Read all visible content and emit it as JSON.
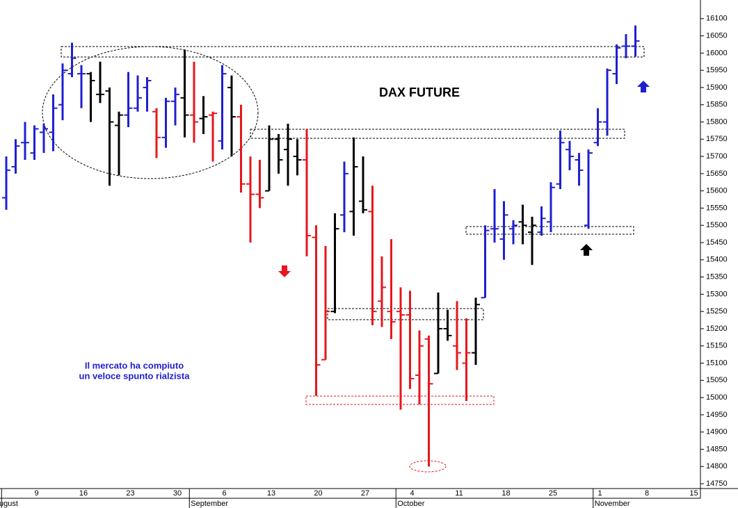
{
  "chart_data": {
    "type": "ohlc",
    "title": "DAX FUTURE",
    "annotation": [
      "Il mercato ha compiuto",
      "un veloce spunto rialzista"
    ],
    "categories": [
      null,
      null,
      null,
      "9",
      null,
      null,
      null,
      null,
      "16",
      null,
      null,
      null,
      null,
      "23",
      null,
      null,
      null,
      null,
      "30",
      null,
      null,
      null,
      null,
      "6",
      null,
      null,
      null,
      null,
      "13",
      null,
      null,
      null,
      null,
      "20",
      null,
      null,
      null,
      null,
      "27",
      null,
      null,
      null,
      null,
      "4",
      null,
      null,
      null,
      null,
      "11",
      null,
      null,
      null,
      null,
      "18",
      null,
      null,
      null,
      null,
      "25",
      null,
      null,
      null,
      null,
      "1",
      null,
      null,
      null,
      null,
      "8",
      null,
      null,
      null,
      null,
      "15"
    ],
    "months": [
      "ugust",
      null,
      null,
      null,
      null,
      null,
      null,
      null,
      null,
      null,
      null,
      null,
      null,
      null,
      null,
      null,
      null,
      null,
      null,
      null,
      "September",
      null,
      null,
      null,
      null,
      null,
      null,
      null,
      null,
      null,
      null,
      null,
      null,
      null,
      null,
      null,
      null,
      null,
      null,
      null,
      null,
      null,
      "October",
      null,
      null,
      null,
      null,
      null,
      null,
      null,
      null,
      null,
      null,
      null,
      null,
      null,
      null,
      null,
      null,
      null,
      null,
      null,
      null,
      "November",
      null,
      null,
      null,
      null,
      null,
      null,
      null,
      null,
      null,
      null
    ],
    "open": [
      15580,
      15670,
      15740,
      15710,
      15770,
      15770,
      15850,
      15940,
      15940,
      15940,
      15880,
      15890,
      15790,
      15820,
      15840,
      15900,
      15830,
      15755,
      15860,
      15870,
      15820,
      15810,
      15820,
      15745,
      15900,
      15815,
      15620,
      15590,
      15600,
      15750,
      15720,
      15700,
      15690,
      15465,
      15110,
      15250,
      15530,
      15540,
      15570,
      15540,
      15280,
      15250,
      15250,
      15240,
      15065,
      15170,
      15070,
      15200,
      15150,
      15100,
      15130,
      15290,
      15490,
      15460,
      15490,
      15510,
      15480,
      15480,
      15510,
      15620,
      15720,
      15690,
      15500,
      15740,
      15800,
      15940,
      16020,
      16020,
      null,
      null,
      null,
      null,
      null,
      null
    ],
    "high": [
      15700,
      15750,
      15800,
      15790,
      15795,
      15880,
      15970,
      16030,
      15965,
      15945,
      15975,
      15900,
      15830,
      15945,
      15935,
      15930,
      15840,
      15870,
      15900,
      16010,
      15975,
      15875,
      15830,
      15965,
      15935,
      15850,
      15700,
      15690,
      15790,
      15765,
      15795,
      15750,
      15780,
      15500,
      15440,
      15535,
      15685,
      15755,
      15700,
      15615,
      15410,
      15460,
      15320,
      15310,
      15195,
      15180,
      15305,
      15255,
      15280,
      15230,
      15290,
      15500,
      15605,
      15570,
      15515,
      15560,
      15525,
      15555,
      15625,
      15775,
      15745,
      15710,
      15720,
      15840,
      15955,
      16025,
      16055,
      16080,
      null,
      null,
      null,
      null,
      null,
      null
    ],
    "low": [
      15545,
      15650,
      15690,
      15690,
      15710,
      15715,
      15805,
      15930,
      15840,
      15800,
      15855,
      15615,
      15645,
      15785,
      15830,
      15830,
      15695,
      15725,
      15790,
      15755,
      15740,
      15765,
      15685,
      15720,
      15700,
      15595,
      15450,
      15550,
      15600,
      15650,
      15615,
      15645,
      15410,
      15005,
      15110,
      15245,
      15480,
      15470,
      15535,
      15210,
      15205,
      15170,
      14965,
      15025,
      14980,
      14800,
      15070,
      15165,
      15080,
      14990,
      15095,
      15290,
      15450,
      15400,
      15445,
      15445,
      15385,
      15470,
      15480,
      15605,
      15660,
      15615,
      15490,
      15730,
      15760,
      15910,
      15985,
      15990,
      null,
      null,
      null,
      null,
      null,
      null
    ],
    "close": [
      15660,
      15730,
      15740,
      15780,
      15780,
      15840,
      15950,
      15985,
      15940,
      15920,
      15880,
      15800,
      15820,
      15840,
      15870,
      15920,
      15755,
      15860,
      15880,
      15820,
      15800,
      15815,
      15825,
      15940,
      15815,
      15620,
      15590,
      15580,
      15750,
      15690,
      15750,
      15690,
      15470,
      15095,
      15250,
      15490,
      15650,
      15670,
      15545,
      15250,
      15320,
      15220,
      15240,
      15055,
      15150,
      15040,
      15200,
      15180,
      15130,
      15130,
      15270,
      15485,
      15490,
      15530,
      15500,
      15500,
      15500,
      15520,
      15610,
      15740,
      15700,
      15660,
      15710,
      15800,
      15950,
      16015,
      16020,
      16035,
      null,
      null,
      null,
      null,
      null,
      null
    ],
    "colors": [
      "#1f1fd1",
      "#1f1fd1",
      "#1f1fd1",
      "#1f1fd1",
      "#1f1fd1",
      "#1f1fd1",
      "#1f1fd1",
      "#1f1fd1",
      "#1f1fd1",
      "#000000",
      "#000000",
      "#000000",
      "#000000",
      "#1f1fd1",
      "#1f1fd1",
      "#1f1fd1",
      "#e6161c",
      "#1f1fd1",
      "#1f1fd1",
      "#000000",
      "#e6161c",
      "#000000",
      "#e6161c",
      "#1f1fd1",
      "#000000",
      "#e6161c",
      "#e6161c",
      "#e6161c",
      "#000000",
      "#000000",
      "#000000",
      "#000000",
      "#e6161c",
      "#e6161c",
      "#e6161c",
      "#000000",
      "#1f1fd1",
      "#000000",
      "#000000",
      "#e6161c",
      "#e6161c",
      "#e6161c",
      "#e6161c",
      "#e6161c",
      "#e6161c",
      "#e6161c",
      "#000000",
      "#000000",
      "#e6161c",
      "#e6161c",
      "#000000",
      "#1f1fd1",
      "#1f1fd1",
      "#1f1fd1",
      "#1f1fd1",
      "#000000",
      "#000000",
      "#1f1fd1",
      "#1f1fd1",
      "#1f1fd1",
      "#1f1fd1",
      "#1f1fd1",
      "#1f1fd1",
      "#1f1fd1",
      "#1f1fd1",
      "#1f1fd1",
      "#1f1fd1",
      "#1f1fd1",
      null,
      null,
      null,
      null,
      null,
      null
    ],
    "ylim": [
      14736,
      16154
    ],
    "yticks": [
      14750,
      14800,
      14850,
      14900,
      14950,
      15000,
      15050,
      15100,
      15150,
      15200,
      15250,
      15300,
      15350,
      15400,
      15450,
      15500,
      15550,
      15600,
      15650,
      15700,
      15750,
      15800,
      15850,
      15900,
      15950,
      16000,
      16050,
      16100
    ]
  }
}
